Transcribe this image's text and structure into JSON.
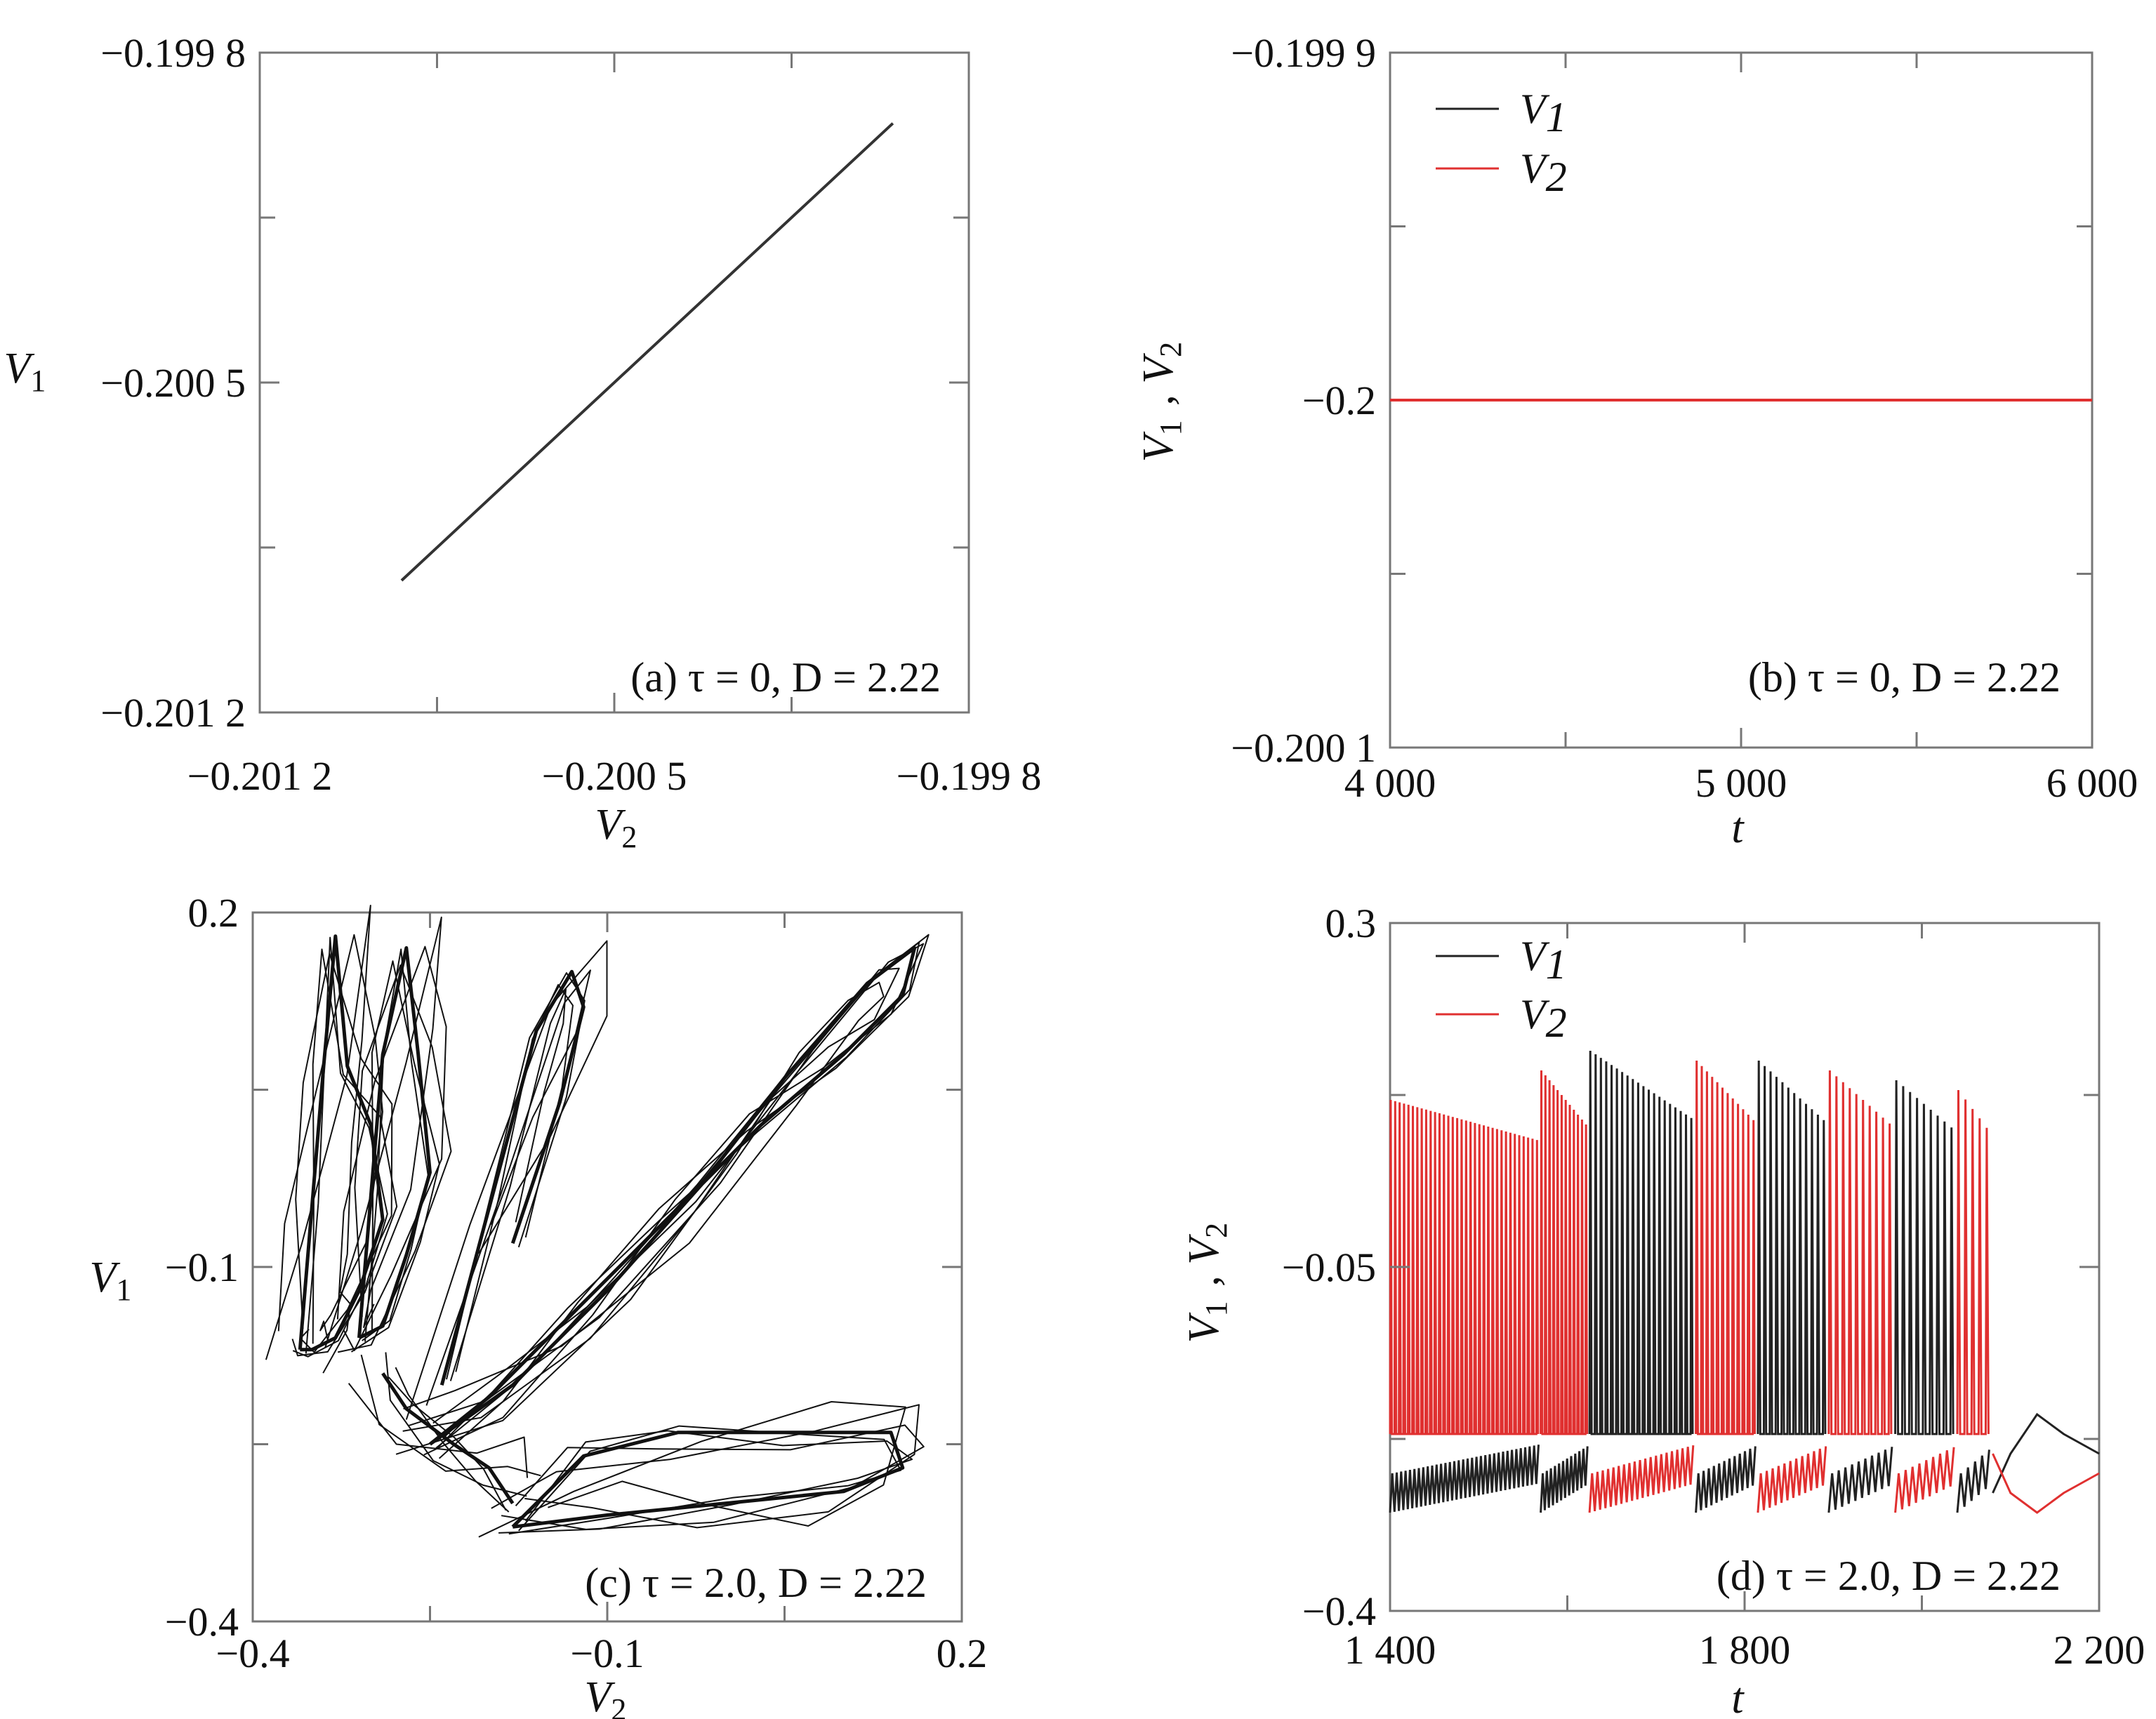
{
  "chart_data": [
    {
      "id": "a",
      "type": "line",
      "caption": "(a) τ = 0, D = 2.22",
      "xlabel": "V2",
      "ylabel": "V1",
      "xlim": [
        -0.2012,
        -0.1998
      ],
      "ylim": [
        -0.2012,
        -0.1998
      ],
      "xticks": [
        {
          "value": -0.2012,
          "label": "−0.201 2"
        },
        {
          "value": -0.2005,
          "label": "−0.200 5"
        },
        {
          "value": -0.1998,
          "label": "−0.199 8"
        }
      ],
      "yticks": [
        {
          "value": -0.2012,
          "label": "−0.201 2"
        },
        {
          "value": -0.2005,
          "label": "−0.200 5"
        },
        {
          "value": -0.1998,
          "label": "−0.199 8"
        }
      ],
      "series": [
        {
          "color": "#333333",
          "x": [
            -0.20092,
            -0.19995
          ],
          "y": [
            -0.20092,
            -0.19995
          ]
        }
      ]
    },
    {
      "id": "b",
      "type": "line",
      "caption": "(b) τ = 0, D = 2.22",
      "xlabel": "t",
      "ylabel": "V1 , V2",
      "xlim": [
        4000,
        6000
      ],
      "ylim": [
        -0.2001,
        -0.1999
      ],
      "xticks": [
        {
          "value": 4000,
          "label": "4 000"
        },
        {
          "value": 5000,
          "label": "5 000"
        },
        {
          "value": 6000,
          "label": "6 000"
        }
      ],
      "yticks": [
        {
          "value": -0.2001,
          "label": "−0.200 1"
        },
        {
          "value": -0.2,
          "label": "−0.2"
        },
        {
          "value": -0.1999,
          "label": "−0.199 9"
        }
      ],
      "legend": [
        {
          "label": "V1",
          "color": "#222222"
        },
        {
          "label": "V2",
          "color": "#e03030"
        }
      ],
      "legend_position": "top-left",
      "series": [
        {
          "name": "V1",
          "color": "#222222",
          "x": [
            4000,
            6000
          ],
          "y": [
            -0.2,
            -0.2
          ]
        },
        {
          "name": "V2",
          "color": "#e03030",
          "x": [
            4000,
            6000
          ],
          "y": [
            -0.2,
            -0.2
          ]
        }
      ]
    },
    {
      "id": "c",
      "type": "line",
      "caption": "(c) τ = 2.0, D = 2.22",
      "xlabel": "V2",
      "ylabel": "V1",
      "xlim": [
        -0.4,
        0.2
      ],
      "ylim": [
        -0.4,
        0.2
      ],
      "xticks": [
        {
          "value": -0.4,
          "label": "−0.4"
        },
        {
          "value": -0.1,
          "label": "−0.1"
        },
        {
          "value": 0.2,
          "label": "0.2"
        }
      ],
      "yticks": [
        {
          "value": -0.4,
          "label": "−0.4"
        },
        {
          "value": -0.1,
          "label": "−0.1"
        },
        {
          "value": 0.2,
          "label": "0.2"
        }
      ],
      "series": [
        {
          "color": "#111111",
          "x": [
            -0.25,
            -0.18,
            -0.1,
            -0.02,
            0.05,
            0.12,
            0.16,
            0.15,
            0.1,
            0.03,
            -0.05,
            -0.13,
            -0.2,
            -0.25
          ],
          "y": [
            -0.25,
            -0.2,
            -0.12,
            -0.03,
            0.06,
            0.14,
            0.17,
            0.13,
            0.08,
            0.02,
            -0.06,
            -0.14,
            -0.21,
            -0.25
          ]
        },
        {
          "color": "#111111",
          "x": [
            -0.36,
            -0.35,
            -0.34,
            -0.33,
            -0.32,
            -0.3,
            -0.29,
            -0.31,
            -0.33,
            -0.35,
            -0.36
          ],
          "y": [
            -0.17,
            -0.05,
            0.07,
            0.18,
            0.07,
            0.02,
            -0.06,
            -0.12,
            -0.16,
            -0.17,
            -0.17
          ]
        },
        {
          "color": "#111111",
          "x": [
            -0.31,
            -0.3,
            -0.29,
            -0.27,
            -0.26,
            -0.25,
            -0.27,
            -0.29,
            -0.31
          ],
          "y": [
            -0.16,
            -0.04,
            0.08,
            0.17,
            0.08,
            -0.02,
            -0.09,
            -0.15,
            -0.16
          ]
        },
        {
          "color": "#111111",
          "x": [
            -0.18,
            -0.12,
            -0.04,
            0.06,
            0.14,
            0.15,
            0.1,
            0.0,
            -0.1,
            -0.18
          ],
          "y": [
            -0.32,
            -0.26,
            -0.24,
            -0.24,
            -0.24,
            -0.27,
            -0.29,
            -0.3,
            -0.31,
            -0.32
          ]
        },
        {
          "color": "#111111",
          "x": [
            -0.29,
            -0.27,
            -0.23,
            -0.2,
            -0.18
          ],
          "y": [
            -0.19,
            -0.22,
            -0.25,
            -0.27,
            -0.3
          ]
        },
        {
          "color": "#111111",
          "x": [
            -0.18,
            -0.14,
            -0.12,
            -0.13,
            -0.16,
            -0.2,
            -0.24
          ],
          "y": [
            -0.08,
            0.04,
            0.12,
            0.15,
            0.1,
            -0.05,
            -0.2
          ]
        }
      ]
    },
    {
      "id": "d",
      "type": "line",
      "caption": "(d) τ = 2.0, D = 2.22",
      "xlabel": "t",
      "ylabel": "V1 , V2",
      "xlim": [
        1400,
        2200
      ],
      "ylim": [
        -0.4,
        0.3
      ],
      "xticks": [
        {
          "value": 1400,
          "label": "1 400"
        },
        {
          "value": 1800,
          "label": "1 800"
        },
        {
          "value": 2200,
          "label": "2 200"
        }
      ],
      "yticks": [
        {
          "value": -0.4,
          "label": "−0.4"
        },
        {
          "value": -0.05,
          "label": "−0.05"
        },
        {
          "value": 0.3,
          "label": "0.3"
        }
      ],
      "legend": [
        {
          "label": "V1",
          "color": "#222222"
        },
        {
          "label": "V2",
          "color": "#e03030"
        }
      ],
      "legend_position": "top-left",
      "bursts": [
        {
          "start": 1400,
          "end": 1570,
          "leader": "V2",
          "peak": 0.12,
          "spikes": 34
        },
        {
          "start": 1570,
          "end": 1625,
          "leader": "V2",
          "peak": 0.15,
          "spikes": 12
        },
        {
          "start": 1625,
          "end": 1745,
          "leader": "V1",
          "peak": 0.17,
          "spikes": 20
        },
        {
          "start": 1745,
          "end": 1815,
          "leader": "V2",
          "peak": 0.16,
          "spikes": 12
        },
        {
          "start": 1815,
          "end": 1895,
          "leader": "V1",
          "peak": 0.16,
          "spikes": 12
        },
        {
          "start": 1895,
          "end": 1970,
          "leader": "V2",
          "peak": 0.15,
          "spikes": 10
        },
        {
          "start": 1970,
          "end": 2040,
          "leader": "V1",
          "peak": 0.14,
          "spikes": 9
        },
        {
          "start": 2040,
          "end": 2080,
          "leader": "V2",
          "peak": 0.13,
          "spikes": 5
        }
      ]
    }
  ]
}
